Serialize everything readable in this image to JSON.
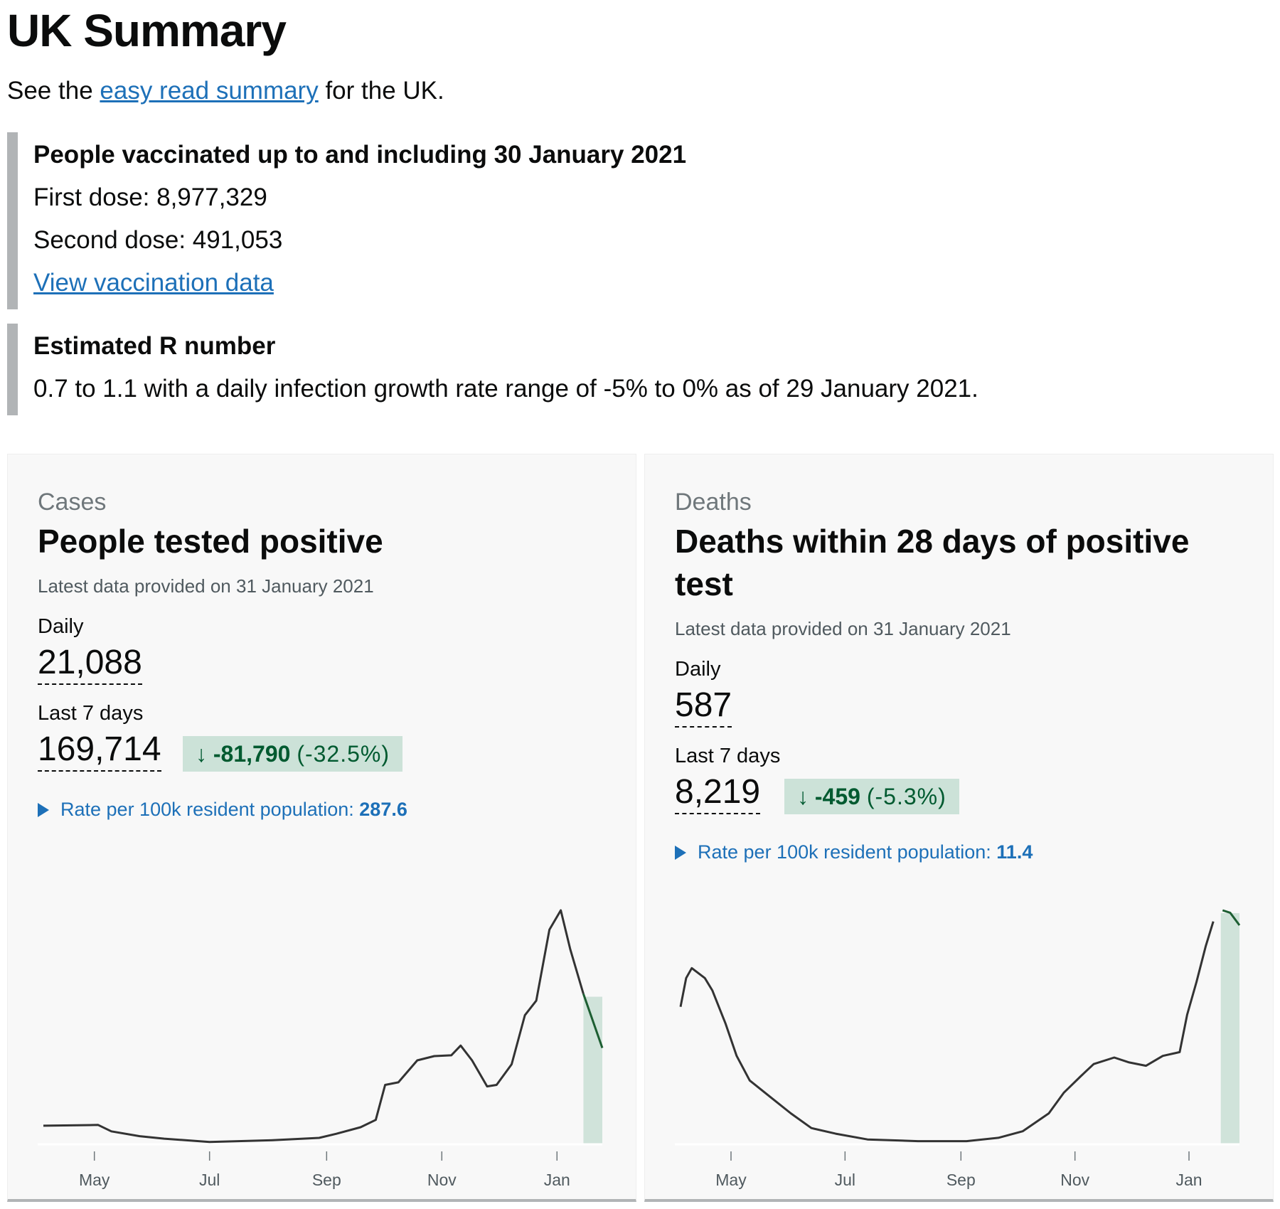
{
  "page": {
    "title": "UK Summary",
    "intro_before": "See the ",
    "intro_link": "easy read summary",
    "intro_after": " for the UK."
  },
  "vaccination": {
    "heading": "People vaccinated up to and including 30 January 2021",
    "first_dose": "First dose: 8,977,329",
    "second_dose": "Second dose: 491,053",
    "link": "View vaccination data"
  },
  "r_number": {
    "heading": "Estimated R number",
    "text": "0.7 to 1.1 with a daily infection growth rate range of -5% to 0% as of 29 January 2021."
  },
  "colors": {
    "line": "#333333",
    "recent_line": "#1d5e32",
    "highlight": "#d0e3da",
    "link": "#1d70b8",
    "badge_bg": "#cce2d8",
    "badge_text": "#005a30"
  },
  "cards": [
    {
      "caption": "Cases",
      "title": "People tested positive",
      "updated": "Latest data provided on 31 January 2021",
      "daily_label": "Daily",
      "daily_value": "21,088",
      "week_label": "Last 7 days",
      "week_value": "169,714",
      "change_arrow": "↓",
      "change_value": "-81,790",
      "change_pct": "(-32.5%)",
      "rate_label": "Rate per 100k resident population: ",
      "rate_value": "287.6"
    },
    {
      "caption": "Deaths",
      "title": "Deaths within 28 days of positive test",
      "updated": "Latest data provided on 31 January 2021",
      "daily_label": "Daily",
      "daily_value": "587",
      "week_label": "Last 7 days",
      "week_value": "8,219",
      "change_arrow": "↓",
      "change_value": "-459",
      "change_pct": "(-5.3%)",
      "rate_label": "Rate per 100k resident population: ",
      "rate_value": "11.4"
    }
  ],
  "chart_data": [
    {
      "type": "line",
      "title": "People tested positive",
      "ticks": [
        "May",
        "Jul",
        "Sep",
        "Nov",
        "Jan"
      ],
      "tick_dates": [
        "2020-05-01",
        "2020-07-01",
        "2020-09-01",
        "2020-11-01",
        "2021-01-01"
      ],
      "ymax": 60000,
      "highlight_from": "2021-01-15",
      "points": [
        [
          "2020-04-04",
          4600
        ],
        [
          "2020-05-03",
          4800
        ],
        [
          "2020-05-10",
          3150
        ],
        [
          "2020-05-25",
          1900
        ],
        [
          "2020-06-07",
          1260
        ],
        [
          "2020-07-01",
          420
        ],
        [
          "2020-08-02",
          840
        ],
        [
          "2020-08-28",
          1470
        ],
        [
          "2020-09-06",
          2500
        ],
        [
          "2020-09-19",
          4200
        ],
        [
          "2020-09-27",
          6100
        ],
        [
          "2020-10-02",
          15100
        ],
        [
          "2020-10-09",
          15750
        ],
        [
          "2020-10-19",
          21400
        ],
        [
          "2020-10-28",
          22500
        ],
        [
          "2020-11-06",
          22700
        ],
        [
          "2020-11-11",
          25200
        ],
        [
          "2020-11-17",
          21400
        ],
        [
          "2020-11-25",
          14700
        ],
        [
          "2020-11-30",
          15100
        ],
        [
          "2020-12-08",
          20400
        ],
        [
          "2020-12-15",
          33000
        ],
        [
          "2020-12-21",
          36750
        ],
        [
          "2020-12-28",
          55000
        ],
        [
          "2021-01-03",
          60000
        ],
        [
          "2021-01-08",
          50000
        ],
        [
          "2021-01-15",
          38500
        ],
        [
          "2021-01-25",
          24600
        ]
      ]
    },
    {
      "type": "line",
      "title": "Deaths within 28 days of positive test",
      "ticks": [
        "May",
        "Jul",
        "Sep",
        "Nov",
        "Jan"
      ],
      "tick_dates": [
        "2020-05-01",
        "2020-07-01",
        "2020-09-01",
        "2020-11-01",
        "2021-01-01"
      ],
      "ymax": 1250,
      "highlight_from": "2021-01-18",
      "points": [
        [
          "2020-04-04",
          733
        ],
        [
          "2020-04-07",
          887
        ],
        [
          "2020-04-10",
          940
        ],
        [
          "2020-04-17",
          887
        ],
        [
          "2020-04-21",
          821
        ],
        [
          "2020-04-28",
          645
        ],
        [
          "2020-05-04",
          470
        ],
        [
          "2020-05-11",
          338
        ],
        [
          "2020-05-22",
          250
        ],
        [
          "2020-06-02",
          162
        ],
        [
          "2020-06-13",
          83
        ],
        [
          "2020-06-26",
          53
        ],
        [
          "2020-07-13",
          22
        ],
        [
          "2020-08-09",
          13
        ],
        [
          "2020-09-04",
          13
        ],
        [
          "2020-09-21",
          31
        ],
        [
          "2020-10-04",
          66
        ],
        [
          "2020-10-18",
          162
        ],
        [
          "2020-10-26",
          272
        ],
        [
          "2020-11-04",
          360
        ],
        [
          "2020-11-11",
          426
        ],
        [
          "2020-11-22",
          461
        ],
        [
          "2020-11-30",
          435
        ],
        [
          "2020-12-09",
          417
        ],
        [
          "2020-12-18",
          470
        ],
        [
          "2020-12-27",
          490
        ],
        [
          "2020-12-31",
          690
        ],
        [
          "2021-01-05",
          865
        ],
        [
          "2021-01-10",
          1060
        ],
        [
          "2021-01-14",
          1190
        ],
        [
          "2021-01-19",
          1250
        ],
        [
          "2021-01-23",
          1237
        ],
        [
          "2021-01-28",
          1170
        ]
      ]
    }
  ]
}
